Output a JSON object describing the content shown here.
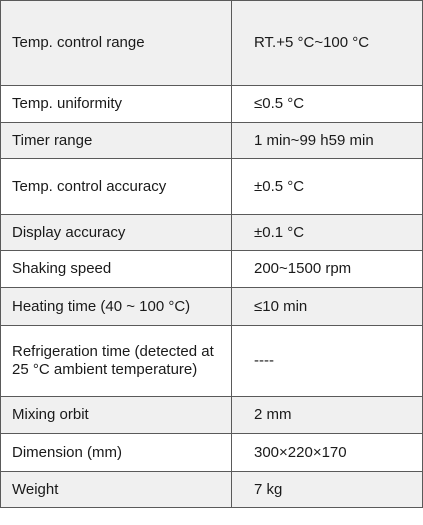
{
  "specs": [
    {
      "label": "Temp. control range",
      "value": "RT.+5 °C~100 °C"
    },
    {
      "label": "Temp. uniformity",
      "value": "≤0.5 °C"
    },
    {
      "label": "Timer range",
      "value": "1 min~99 h59 min"
    },
    {
      "label": "Temp. control accuracy",
      "value": "±0.5 °C"
    },
    {
      "label": "Display accuracy",
      "value": "±0.1 °C"
    },
    {
      "label": "Shaking speed",
      "value": "200~1500 rpm"
    },
    {
      "label": "Heating time (40 ~ 100 °C)",
      "value": "≤10 min"
    },
    {
      "label": "Refrigeration time (detected at 25 °C ambient temperature)",
      "value": "----"
    },
    {
      "label": "Mixing orbit",
      "value": "2 mm"
    },
    {
      "label": "Dimension (mm)",
      "value": "300×220×170"
    },
    {
      "label": "Weight",
      "value": "7 kg"
    }
  ]
}
